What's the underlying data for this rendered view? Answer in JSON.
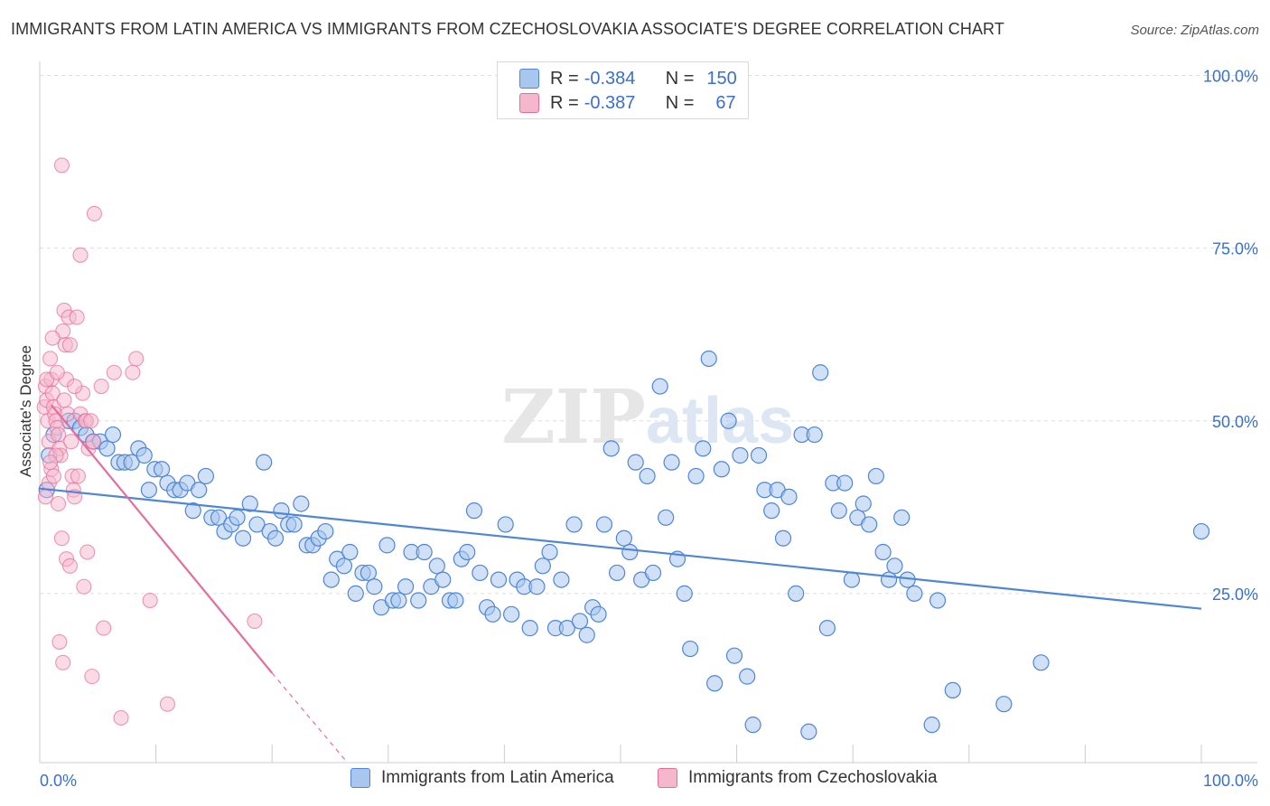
{
  "title": "IMMIGRANTS FROM LATIN AMERICA VS IMMIGRANTS FROM CZECHOSLOVAKIA ASSOCIATE'S DEGREE CORRELATION CHART",
  "source": "Source: ZipAtlas.com",
  "legend_top": {
    "rows": [
      {
        "r_label": "R = ",
        "r_value": "-0.384",
        "n_label": "N = ",
        "n_value": "150"
      },
      {
        "r_label": "R = ",
        "r_value": "-0.387",
        "n_label": "N = ",
        "n_value": "67"
      }
    ]
  },
  "legend_bottom": [
    "Immigrants from Latin America",
    "Immigrants from Czechoslovakia"
  ],
  "colors": {
    "blue": "#4f86d6",
    "blue_fill": "#a9c6ee",
    "pink": "#e46d9a",
    "pink_fill": "#f5b7cb"
  },
  "chart_data": {
    "type": "scatter",
    "xlabel": "",
    "ylabel": "Associate's Degree",
    "xlim": [
      0,
      100
    ],
    "ylim": [
      0,
      100
    ],
    "x_tick_labels": [
      "0.0%",
      "100.0%"
    ],
    "y_tick_labels": [
      "100.0%",
      "75.0%",
      "50.0%",
      "25.0%"
    ],
    "y_ticks": [
      100,
      75,
      50,
      25
    ],
    "series": [
      {
        "name": "Immigrants from Latin America",
        "color": "#4f86d6",
        "trend": {
          "x": [
            0,
            100
          ],
          "y": [
            40.2,
            22.8
          ]
        },
        "points": [
          [
            0.6,
            40
          ],
          [
            0.8,
            45
          ],
          [
            1.2,
            48
          ],
          [
            2.5,
            50
          ],
          [
            3.0,
            50
          ],
          [
            3.5,
            49
          ],
          [
            4.0,
            48
          ],
          [
            4.6,
            47
          ],
          [
            5.2,
            47
          ],
          [
            5.8,
            46
          ],
          [
            6.3,
            48
          ],
          [
            6.8,
            44
          ],
          [
            7.3,
            44
          ],
          [
            7.9,
            44
          ],
          [
            8.5,
            46
          ],
          [
            9.0,
            45
          ],
          [
            9.4,
            40
          ],
          [
            9.9,
            43
          ],
          [
            10.5,
            43
          ],
          [
            11.0,
            41
          ],
          [
            11.6,
            40
          ],
          [
            12.1,
            40
          ],
          [
            12.7,
            41
          ],
          [
            13.2,
            37
          ],
          [
            13.7,
            40
          ],
          [
            14.3,
            42
          ],
          [
            14.8,
            36
          ],
          [
            15.4,
            36
          ],
          [
            15.9,
            34
          ],
          [
            16.5,
            35
          ],
          [
            17.0,
            36
          ],
          [
            17.5,
            33
          ],
          [
            18.1,
            38
          ],
          [
            18.7,
            35
          ],
          [
            19.3,
            44
          ],
          [
            19.8,
            34
          ],
          [
            20.3,
            33
          ],
          [
            20.8,
            37
          ],
          [
            21.4,
            35
          ],
          [
            21.9,
            35
          ],
          [
            22.5,
            38
          ],
          [
            23.0,
            32
          ],
          [
            23.5,
            32
          ],
          [
            24.0,
            33
          ],
          [
            24.6,
            34
          ],
          [
            25.1,
            27
          ],
          [
            25.6,
            30
          ],
          [
            26.2,
            29
          ],
          [
            26.7,
            31
          ],
          [
            27.2,
            25
          ],
          [
            27.8,
            28
          ],
          [
            28.3,
            28
          ],
          [
            28.8,
            26
          ],
          [
            29.4,
            23
          ],
          [
            29.9,
            32
          ],
          [
            30.4,
            24
          ],
          [
            30.9,
            24
          ],
          [
            31.5,
            26
          ],
          [
            32.0,
            31
          ],
          [
            32.6,
            24
          ],
          [
            33.1,
            31
          ],
          [
            33.7,
            26
          ],
          [
            34.2,
            29
          ],
          [
            34.7,
            27
          ],
          [
            35.3,
            24
          ],
          [
            35.8,
            24
          ],
          [
            36.3,
            30
          ],
          [
            36.8,
            31
          ],
          [
            37.4,
            37
          ],
          [
            37.9,
            28
          ],
          [
            38.5,
            23
          ],
          [
            39.0,
            22
          ],
          [
            39.5,
            27
          ],
          [
            40.1,
            35
          ],
          [
            40.6,
            22
          ],
          [
            41.1,
            27
          ],
          [
            41.7,
            26
          ],
          [
            42.2,
            20
          ],
          [
            42.8,
            26
          ],
          [
            43.3,
            29
          ],
          [
            43.9,
            31
          ],
          [
            44.4,
            20
          ],
          [
            44.9,
            27
          ],
          [
            45.4,
            20
          ],
          [
            46.0,
            35
          ],
          [
            46.5,
            21
          ],
          [
            47.1,
            19
          ],
          [
            47.6,
            23
          ],
          [
            48.1,
            22
          ],
          [
            48.6,
            35
          ],
          [
            49.2,
            46
          ],
          [
            49.7,
            28
          ],
          [
            50.3,
            33
          ],
          [
            50.8,
            31
          ],
          [
            51.3,
            44
          ],
          [
            51.8,
            27
          ],
          [
            52.3,
            42
          ],
          [
            52.8,
            28
          ],
          [
            53.4,
            55
          ],
          [
            53.9,
            36
          ],
          [
            54.4,
            44
          ],
          [
            54.9,
            30
          ],
          [
            55.5,
            25
          ],
          [
            56.0,
            17
          ],
          [
            56.5,
            42
          ],
          [
            57.1,
            46
          ],
          [
            57.6,
            59
          ],
          [
            58.1,
            12
          ],
          [
            58.7,
            43
          ],
          [
            59.3,
            50
          ],
          [
            59.8,
            16
          ],
          [
            60.3,
            45
          ],
          [
            60.9,
            13
          ],
          [
            61.4,
            6
          ],
          [
            61.9,
            45
          ],
          [
            62.4,
            40
          ],
          [
            63.0,
            37
          ],
          [
            63.5,
            40
          ],
          [
            64.0,
            33
          ],
          [
            64.5,
            39
          ],
          [
            65.1,
            25
          ],
          [
            65.6,
            48
          ],
          [
            66.2,
            5
          ],
          [
            66.7,
            48
          ],
          [
            67.2,
            57
          ],
          [
            67.8,
            20
          ],
          [
            68.3,
            41
          ],
          [
            68.8,
            37
          ],
          [
            69.3,
            41
          ],
          [
            69.9,
            27
          ],
          [
            70.4,
            36
          ],
          [
            70.9,
            38
          ],
          [
            71.4,
            35
          ],
          [
            72.0,
            42
          ],
          [
            72.6,
            31
          ],
          [
            73.1,
            27
          ],
          [
            73.6,
            29
          ],
          [
            74.2,
            36
          ],
          [
            74.7,
            27
          ],
          [
            75.3,
            25
          ],
          [
            76.8,
            6
          ],
          [
            77.3,
            24
          ],
          [
            78.6,
            11
          ],
          [
            83.0,
            9
          ],
          [
            86.2,
            15
          ],
          [
            100,
            34
          ]
        ]
      },
      {
        "name": "Immigrants from Czechoslovakia",
        "color": "#e46d9a",
        "trend": {
          "x": [
            1.0,
            20.0
          ],
          "y": [
            52.3,
            13.5
          ]
        },
        "trend_dashed": {
          "x": [
            20.0,
            26.5
          ],
          "y": [
            13.5,
            0.5
          ]
        },
        "points": [
          [
            0.4,
            52
          ],
          [
            0.5,
            55
          ],
          [
            0.6,
            53
          ],
          [
            0.7,
            50
          ],
          [
            0.8,
            47
          ],
          [
            0.9,
            59
          ],
          [
            1.0,
            56
          ],
          [
            1.1,
            54
          ],
          [
            1.2,
            52
          ],
          [
            1.3,
            51
          ],
          [
            1.4,
            50
          ],
          [
            1.5,
            49
          ],
          [
            1.6,
            48
          ],
          [
            1.7,
            46
          ],
          [
            1.8,
            45
          ],
          [
            0.5,
            39
          ],
          [
            0.8,
            41
          ],
          [
            1.0,
            43
          ],
          [
            1.2,
            42
          ],
          [
            1.4,
            45
          ],
          [
            1.6,
            38
          ],
          [
            1.9,
            33
          ],
          [
            2.0,
            63
          ],
          [
            2.1,
            66
          ],
          [
            2.2,
            61
          ],
          [
            2.3,
            56
          ],
          [
            2.4,
            51
          ],
          [
            2.5,
            65
          ],
          [
            2.6,
            61
          ],
          [
            2.7,
            47
          ],
          [
            2.8,
            42
          ],
          [
            2.9,
            40
          ],
          [
            3.0,
            39
          ],
          [
            3.2,
            65
          ],
          [
            3.3,
            42
          ],
          [
            3.5,
            51
          ],
          [
            3.7,
            54
          ],
          [
            3.9,
            50
          ],
          [
            4.0,
            50
          ],
          [
            4.2,
            46
          ],
          [
            4.4,
            50
          ],
          [
            4.6,
            47
          ],
          [
            1.9,
            87
          ],
          [
            3.5,
            74
          ],
          [
            4.7,
            80
          ],
          [
            5.3,
            55
          ],
          [
            6.4,
            57
          ],
          [
            8.0,
            57
          ],
          [
            8.3,
            59
          ],
          [
            2.3,
            30
          ],
          [
            2.6,
            29
          ],
          [
            3.8,
            26
          ],
          [
            4.1,
            31
          ],
          [
            1.7,
            18
          ],
          [
            2.0,
            15
          ],
          [
            4.5,
            13
          ],
          [
            5.5,
            20
          ],
          [
            7.0,
            7
          ],
          [
            9.5,
            24
          ],
          [
            11.0,
            9
          ],
          [
            18.5,
            21
          ],
          [
            0.6,
            56
          ],
          [
            1.5,
            57
          ],
          [
            2.1,
            53
          ],
          [
            3.0,
            55
          ],
          [
            1.1,
            62
          ],
          [
            0.9,
            44
          ]
        ]
      }
    ]
  }
}
